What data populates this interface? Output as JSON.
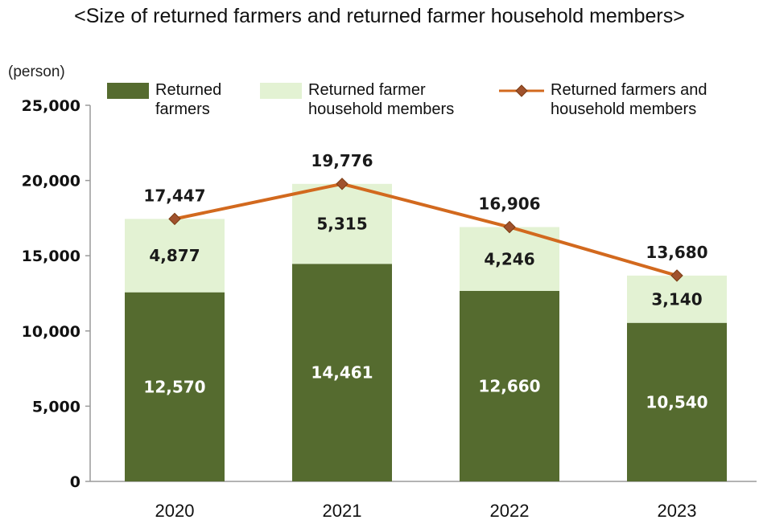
{
  "chart_data": {
    "type": "bar",
    "title": "<Size of returned farmers and returned farmer household members>",
    "ylabel": "(person)",
    "xlabel": "",
    "categories": [
      "2020",
      "2021",
      "2022",
      "2023"
    ],
    "ylim": [
      0,
      25000
    ],
    "yticks": [
      0,
      5000,
      10000,
      15000,
      20000,
      25000
    ],
    "ytick_labels": [
      "0",
      "5,000",
      "10,000",
      "15,000",
      "20,000",
      "25,000"
    ],
    "stacked": true,
    "legend_position": "top",
    "series": [
      {
        "name": "Returned farmers",
        "kind": "bar",
        "color": "#556b2f",
        "values": [
          12570,
          14461,
          12660,
          10540
        ],
        "labels": [
          "12,570",
          "14,461",
          "12,660",
          "10,540"
        ]
      },
      {
        "name": "Returned farmer household members",
        "kind": "bar",
        "color": "#e3f2d3",
        "values": [
          4877,
          5315,
          4246,
          3140
        ],
        "labels": [
          "4,877",
          "5,315",
          "4,246",
          "3,140"
        ]
      },
      {
        "name": "Returned farmers and household members",
        "kind": "line",
        "color": "#d2691e",
        "marker": "diamond",
        "marker_color": "#a0522d",
        "values": [
          17447,
          19776,
          16906,
          13680
        ],
        "labels": [
          "17,447",
          "19,776",
          "16,906",
          "13,680"
        ]
      }
    ]
  },
  "legend": {
    "item1_line1": "Returned",
    "item1_line2": "farmers",
    "item2_line1": "Returned farmer",
    "item2_line2": "household members",
    "item3_line1": "Returned farmers and",
    "item3_line2": "household members"
  }
}
